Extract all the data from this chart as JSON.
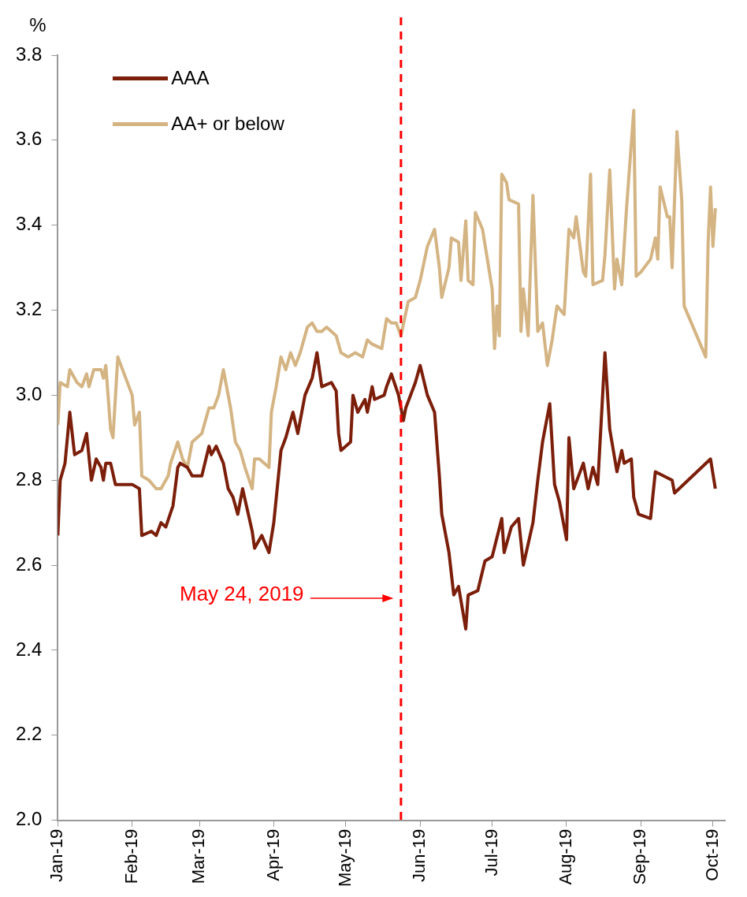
{
  "chart_data": {
    "type": "line",
    "ylabel": "%",
    "legend": "top left",
    "grid": false,
    "marker": "none",
    "line_style": "solid",
    "xlim": [
      "2019-01-01",
      "2019-10-06"
    ],
    "xticks": [
      {
        "value": "2019-01-01",
        "label": "Jan-19"
      },
      {
        "value": "2019-02-01",
        "label": "Feb-19"
      },
      {
        "value": "2019-03-01",
        "label": "Mar-19"
      },
      {
        "value": "2019-04-01",
        "label": "Apr-19"
      },
      {
        "value": "2019-05-01",
        "label": "May-19"
      },
      {
        "value": "2019-06-01",
        "label": "Jun-19"
      },
      {
        "value": "2019-07-01",
        "label": "Jul-19"
      },
      {
        "value": "2019-08-01",
        "label": "Aug-19"
      },
      {
        "value": "2019-09-01",
        "label": "Sep-19"
      },
      {
        "value": "2019-10-01",
        "label": "Oct-19"
      }
    ],
    "ylim": [
      2.0,
      3.8
    ],
    "yticks": [
      {
        "value": 2.0,
        "label": "2.0"
      },
      {
        "value": 2.2,
        "label": "2.2"
      },
      {
        "value": 2.4,
        "label": "2.4"
      },
      {
        "value": 2.6,
        "label": "2.6"
      },
      {
        "value": 2.8,
        "label": "2.8"
      },
      {
        "value": 3.0,
        "label": "3.0"
      },
      {
        "value": 3.2,
        "label": "3.2"
      },
      {
        "value": 3.4,
        "label": "3.4"
      },
      {
        "value": 3.6,
        "label": "3.6"
      },
      {
        "value": 3.8,
        "label": "3.8"
      }
    ],
    "ref_lines": [
      {
        "axis": "x",
        "value": "2019-05-24",
        "label": "May 24, 2019",
        "color": "#ff0000",
        "line_style": "dashed"
      }
    ],
    "series": [
      {
        "name": "AAA",
        "color": "#7b1e0a",
        "x": [
          "2019-01-01",
          "2019-01-02",
          "2019-01-04",
          "2019-01-06",
          "2019-01-08",
          "2019-01-11",
          "2019-01-13",
          "2019-01-15",
          "2019-01-17",
          "2019-01-19",
          "2019-01-20",
          "2019-01-21",
          "2019-01-23",
          "2019-01-25",
          "2019-02-01",
          "2019-02-04",
          "2019-02-05",
          "2019-02-09",
          "2019-02-11",
          "2019-02-13",
          "2019-02-15",
          "2019-02-18",
          "2019-02-20",
          "2019-02-21",
          "2019-02-24",
          "2019-02-26",
          "2019-03-02",
          "2019-03-05",
          "2019-03-06",
          "2019-03-08",
          "2019-03-11",
          "2019-03-13",
          "2019-03-15",
          "2019-03-17",
          "2019-03-19",
          "2019-03-21",
          "2019-03-23",
          "2019-03-24",
          "2019-03-27",
          "2019-03-30",
          "2019-04-01",
          "2019-04-04",
          "2019-04-06",
          "2019-04-09",
          "2019-04-11",
          "2019-04-14",
          "2019-04-17",
          "2019-04-19",
          "2019-04-21",
          "2019-04-25",
          "2019-04-27",
          "2019-04-28",
          "2019-04-29",
          "2019-05-03",
          "2019-05-04",
          "2019-05-06",
          "2019-05-09",
          "2019-05-10",
          "2019-05-12",
          "2019-05-13",
          "2019-05-17",
          "2019-05-18",
          "2019-05-20",
          "2019-05-23",
          "2019-05-25",
          "2019-05-26",
          "2019-05-30",
          "2019-06-01",
          "2019-06-04",
          "2019-06-07",
          "2019-06-09",
          "2019-06-10",
          "2019-06-13",
          "2019-06-15",
          "2019-06-17",
          "2019-06-20",
          "2019-06-21",
          "2019-06-25",
          "2019-06-28",
          "2019-07-01",
          "2019-07-05",
          "2019-07-06",
          "2019-07-09",
          "2019-07-12",
          "2019-07-14",
          "2019-07-18",
          "2019-07-20",
          "2019-07-22",
          "2019-07-25",
          "2019-07-27",
          "2019-07-29",
          "2019-08-01",
          "2019-08-02",
          "2019-08-04",
          "2019-08-06",
          "2019-08-08",
          "2019-08-10",
          "2019-08-12",
          "2019-08-14",
          "2019-08-17",
          "2019-08-19",
          "2019-08-22",
          "2019-08-24",
          "2019-08-25",
          "2019-08-28",
          "2019-08-29",
          "2019-08-31",
          "2019-09-05",
          "2019-09-07",
          "2019-09-14",
          "2019-09-15",
          "2019-09-30",
          "2019-10-02"
        ],
        "values": [
          2.67,
          2.8,
          2.84,
          2.96,
          2.86,
          2.87,
          2.91,
          2.8,
          2.85,
          2.83,
          2.8,
          2.84,
          2.84,
          2.79,
          2.79,
          2.78,
          2.67,
          2.68,
          2.67,
          2.7,
          2.69,
          2.74,
          2.83,
          2.84,
          2.83,
          2.81,
          2.81,
          2.88,
          2.86,
          2.88,
          2.84,
          2.78,
          2.76,
          2.72,
          2.78,
          2.73,
          2.68,
          2.64,
          2.67,
          2.63,
          2.7,
          2.87,
          2.9,
          2.96,
          2.91,
          3.0,
          3.04,
          3.1,
          3.02,
          3.03,
          3.01,
          2.91,
          2.87,
          2.89,
          3.0,
          2.96,
          2.99,
          2.96,
          3.02,
          2.99,
          3.0,
          3.02,
          3.05,
          3.0,
          2.94,
          2.97,
          3.03,
          3.07,
          3.0,
          2.96,
          2.81,
          2.72,
          2.63,
          2.53,
          2.55,
          2.45,
          2.53,
          2.54,
          2.61,
          2.62,
          2.71,
          2.63,
          2.69,
          2.71,
          2.6,
          2.7,
          2.8,
          2.89,
          2.98,
          2.79,
          2.75,
          2.66,
          2.9,
          2.78,
          2.81,
          2.84,
          2.78,
          2.83,
          2.79,
          3.1,
          2.92,
          2.82,
          2.87,
          2.84,
          2.85,
          2.76,
          2.72,
          2.71,
          2.82,
          2.8,
          2.77,
          2.85,
          2.78
        ]
      },
      {
        "name": "AA+ or below",
        "color": "#d4b483",
        "x": [
          "2019-01-01",
          "2019-01-02",
          "2019-01-05",
          "2019-01-06",
          "2019-01-09",
          "2019-01-11",
          "2019-01-13",
          "2019-01-14",
          "2019-01-16",
          "2019-01-19",
          "2019-01-20",
          "2019-01-21",
          "2019-01-23",
          "2019-01-24",
          "2019-01-26",
          "2019-02-01",
          "2019-02-02",
          "2019-02-04",
          "2019-02-05",
          "2019-02-08",
          "2019-02-11",
          "2019-02-13",
          "2019-02-16",
          "2019-02-17",
          "2019-02-20",
          "2019-02-22",
          "2019-02-24",
          "2019-02-26",
          "2019-03-02",
          "2019-03-05",
          "2019-03-07",
          "2019-03-09",
          "2019-03-11",
          "2019-03-14",
          "2019-03-16",
          "2019-03-18",
          "2019-03-20",
          "2019-03-23",
          "2019-03-24",
          "2019-03-26",
          "2019-03-30",
          "2019-03-31",
          "2019-04-02",
          "2019-04-04",
          "2019-04-06",
          "2019-04-08",
          "2019-04-10",
          "2019-04-12",
          "2019-04-15",
          "2019-04-17",
          "2019-04-19",
          "2019-04-21",
          "2019-04-23",
          "2019-04-27",
          "2019-04-29",
          "2019-05-02",
          "2019-05-05",
          "2019-05-08",
          "2019-05-10",
          "2019-05-12",
          "2019-05-16",
          "2019-05-18",
          "2019-05-20",
          "2019-05-22",
          "2019-05-24",
          "2019-05-27",
          "2019-05-30",
          "2019-06-01",
          "2019-06-04",
          "2019-06-07",
          "2019-06-09",
          "2019-06-10",
          "2019-06-13",
          "2019-06-14",
          "2019-06-17",
          "2019-06-18",
          "2019-06-20",
          "2019-06-21",
          "2019-06-23",
          "2019-06-24",
          "2019-06-27",
          "2019-07-01",
          "2019-07-02",
          "2019-07-03",
          "2019-07-04",
          "2019-07-05",
          "2019-07-07",
          "2019-07-08",
          "2019-07-12",
          "2019-07-13",
          "2019-07-14",
          "2019-07-16",
          "2019-07-18",
          "2019-07-20",
          "2019-07-22",
          "2019-07-24",
          "2019-07-26",
          "2019-07-28",
          "2019-07-31",
          "2019-08-02",
          "2019-08-04",
          "2019-08-05",
          "2019-08-08",
          "2019-08-09",
          "2019-08-11",
          "2019-08-12",
          "2019-08-16",
          "2019-08-17",
          "2019-08-19",
          "2019-08-21",
          "2019-08-22",
          "2019-08-24",
          "2019-08-26",
          "2019-08-29",
          "2019-08-30",
          "2019-09-01",
          "2019-09-05",
          "2019-09-07",
          "2019-09-08",
          "2019-09-09",
          "2019-09-12",
          "2019-09-13",
          "2019-09-14",
          "2019-09-16",
          "2019-09-18",
          "2019-09-19",
          "2019-09-28",
          "2019-09-29",
          "2019-09-30",
          "2019-10-01",
          "2019-10-02"
        ],
        "values": [
          2.93,
          3.03,
          3.02,
          3.06,
          3.03,
          3.02,
          3.05,
          3.02,
          3.06,
          3.06,
          3.04,
          3.07,
          2.92,
          2.9,
          3.09,
          3.0,
          2.93,
          2.96,
          2.81,
          2.8,
          2.78,
          2.78,
          2.81,
          2.84,
          2.89,
          2.85,
          2.83,
          2.89,
          2.91,
          2.97,
          2.97,
          3.0,
          3.06,
          2.97,
          2.89,
          2.87,
          2.83,
          2.78,
          2.85,
          2.85,
          2.83,
          2.96,
          3.02,
          3.09,
          3.06,
          3.1,
          3.07,
          3.1,
          3.16,
          3.17,
          3.15,
          3.15,
          3.16,
          3.14,
          3.1,
          3.09,
          3.1,
          3.09,
          3.13,
          3.12,
          3.11,
          3.18,
          3.17,
          3.17,
          3.14,
          3.22,
          3.23,
          3.27,
          3.35,
          3.39,
          3.3,
          3.23,
          3.3,
          3.37,
          3.36,
          3.27,
          3.41,
          3.27,
          3.26,
          3.43,
          3.39,
          3.25,
          3.11,
          3.21,
          3.14,
          3.52,
          3.5,
          3.46,
          3.45,
          3.15,
          3.25,
          3.14,
          3.47,
          3.15,
          3.17,
          3.07,
          3.13,
          3.21,
          3.19,
          3.39,
          3.37,
          3.42,
          3.29,
          3.28,
          3.52,
          3.26,
          3.27,
          3.33,
          3.53,
          3.25,
          3.32,
          3.26,
          3.44,
          3.67,
          3.28,
          3.29,
          3.32,
          3.37,
          3.32,
          3.49,
          3.42,
          3.42,
          3.3,
          3.62,
          3.46,
          3.21,
          3.09,
          3.36,
          3.49,
          3.35,
          3.44
        ]
      }
    ]
  }
}
